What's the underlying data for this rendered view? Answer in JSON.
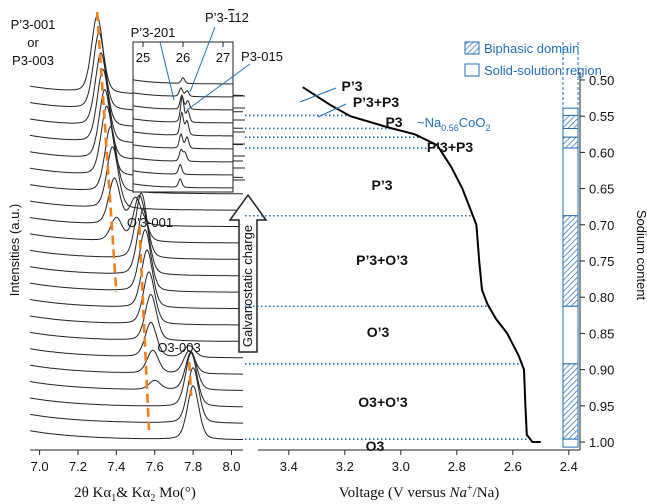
{
  "chart_data": [
    {
      "type": "xrd",
      "y_label": "Intensities (a.u.)",
      "x_label": [
        "2θ  Kα",
        "1",
        "& Kα",
        "2",
        " Mo(°)"
      ],
      "xlim": [
        6.95,
        8.06
      ],
      "xticks": [
        {
          "value": 7,
          "label": "7.0"
        },
        7.2,
        7.4,
        7.6,
        7.8,
        {
          "value": 8,
          "label": "8.0"
        }
      ],
      "line_color": "#222222",
      "guide_color": "#f07f1a",
      "patterns": [
        [
          [
            7.8,
            0.7
          ]
        ],
        [
          [
            7.8,
            0.72
          ]
        ],
        [
          [
            7.79,
            0.7
          ]
        ],
        [
          [
            7.79,
            0.5
          ],
          [
            7.6,
            0.12
          ]
        ],
        [
          [
            7.78,
            0.3
          ],
          [
            7.59,
            0.3
          ]
        ],
        [
          [
            7.78,
            0.15
          ],
          [
            7.58,
            0.45
          ]
        ],
        [
          [
            7.58,
            0.6
          ]
        ],
        [
          [
            7.57,
            0.68
          ]
        ],
        [
          [
            7.56,
            0.75
          ]
        ],
        [
          [
            7.55,
            0.8
          ]
        ],
        [
          [
            7.54,
            0.85
          ]
        ],
        [
          [
            7.53,
            0.85
          ]
        ],
        [
          [
            7.52,
            0.6
          ],
          [
            7.4,
            0.3
          ]
        ],
        [
          [
            7.5,
            0.35
          ],
          [
            7.39,
            0.6
          ]
        ],
        [
          [
            7.38,
            0.8
          ]
        ],
        [
          [
            7.37,
            0.85
          ]
        ],
        [
          [
            7.35,
            0.9
          ]
        ],
        [
          [
            7.34,
            0.9
          ]
        ],
        [
          [
            7.33,
            0.95
          ]
        ],
        [
          [
            7.32,
            0.95
          ]
        ],
        [
          [
            7.31,
            1.0
          ]
        ],
        [
          [
            7.3,
            1.0
          ]
        ]
      ],
      "guides": [
        {
          "x": [
            7.3,
            7.4
          ],
          "label": [
            "P’3-001",
            "or",
            "P3-003"
          ]
        },
        {
          "x": [
            7.52,
            7.57
          ],
          "label": [
            "O’3-001"
          ]
        },
        {
          "x": [
            7.78,
            7.79
          ],
          "label": [
            "O3-003"
          ]
        }
      ],
      "arrow_label": "Galvanostatic charge"
    },
    {
      "type": "xrd",
      "xlim": [
        24.75,
        27.25
      ],
      "xticks": [
        25,
        26,
        27
      ],
      "line_color": "#222222",
      "peak_labels": [
        "P’3-201",
        "P’3-",
        "1",
        "12",
        "P3-015"
      ],
      "patterns": [
        [
          [
            26.0,
            0.2
          ]
        ],
        [
          [
            25.95,
            0.3
          ],
          [
            26.1,
            0.2
          ]
        ],
        [
          [
            25.97,
            0.5
          ],
          [
            26.12,
            0.3
          ]
        ],
        [
          [
            25.98,
            0.9
          ],
          [
            26.12,
            0.4
          ]
        ],
        [
          [
            25.97,
            0.8
          ],
          [
            26.1,
            0.5
          ]
        ],
        [
          [
            25.95,
            0.5
          ],
          [
            26.1,
            0.4
          ]
        ],
        [
          [
            25.95,
            0.4
          ],
          [
            26.05,
            0.3
          ]
        ],
        [
          [
            25.93,
            0.35
          ]
        ],
        [
          [
            25.93,
            0.3
          ]
        ]
      ]
    },
    {
      "type": "line",
      "x_label": [
        "Voltage (V versus ",
        "Na",
        "+",
        "/Na)"
      ],
      "y_label": "Sodium content",
      "xlim": [
        3.51,
        2.36
      ],
      "xticks": [
        3.4,
        3.2,
        {
          "value": 3,
          "label": "3.0"
        },
        2.8,
        2.6,
        2.4
      ],
      "ylim": [
        0.489,
        1.011
      ],
      "yticks": [
        {
          "value": 0.5,
          "label": "0.50"
        },
        0.55,
        {
          "value": 0.6,
          "label": "0.60"
        },
        0.65,
        {
          "value": 0.7,
          "label": "0.70"
        },
        0.75,
        {
          "value": 0.8,
          "label": "0.80"
        },
        0.85,
        {
          "value": 0.9,
          "label": "0.90"
        },
        0.95,
        {
          "value": 1,
          "label": "1.00"
        }
      ],
      "color": "#000000",
      "accent": "#1f6fb5",
      "x": [
        3.35,
        3.25,
        3.18,
        3.05,
        2.95,
        2.87,
        2.82,
        2.78,
        2.75,
        2.74,
        2.73,
        2.72,
        2.71,
        2.7,
        2.69,
        2.66,
        2.62,
        2.58,
        2.56,
        2.555,
        2.55,
        2.53,
        2.5
      ],
      "y": [
        0.51,
        0.535,
        0.55,
        0.565,
        0.575,
        0.59,
        0.62,
        0.65,
        0.68,
        0.69,
        0.7,
        0.75,
        0.79,
        0.8,
        0.81,
        0.83,
        0.85,
        0.88,
        0.9,
        0.95,
        0.99,
        1.0,
        1.0
      ],
      "boundaries": [
        0.549,
        0.567,
        0.579,
        0.594,
        0.6875,
        0.8125,
        0.892,
        0.996
      ],
      "phases": [
        "P’3",
        "P’3+P3",
        "P3",
        "P’3+P3",
        "P’3",
        "P’3+O’3",
        "O’3",
        "O3+O’3",
        "O3"
      ],
      "formula": [
        "~Na",
        "0.56",
        "CoO",
        "2"
      ],
      "legend": [
        "Biphasic domain",
        "Solid-solution region"
      ],
      "domains": [
        {
          "range": [
            0.539,
            0.549
          ],
          "biphasic": false
        },
        {
          "range": [
            0.549,
            0.567
          ],
          "biphasic": true
        },
        {
          "range": [
            0.567,
            0.579
          ],
          "biphasic": false
        },
        {
          "range": [
            0.579,
            0.594
          ],
          "biphasic": true
        },
        {
          "range": [
            0.594,
            0.6875
          ],
          "biphasic": false
        },
        {
          "range": [
            0.6875,
            0.8125
          ],
          "biphasic": true
        },
        {
          "range": [
            0.8125,
            0.892
          ],
          "biphasic": false
        },
        {
          "range": [
            0.892,
            0.996
          ],
          "biphasic": true
        },
        {
          "range": [
            0.996,
            1.007
          ],
          "biphasic": false
        }
      ]
    }
  ]
}
